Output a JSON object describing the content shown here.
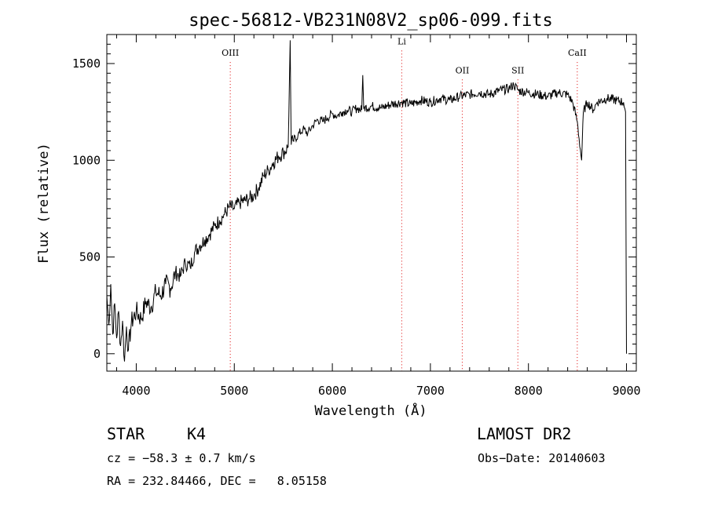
{
  "chart_data": {
    "type": "line",
    "title": "spec-56812-VB231N08V2_sp06-099.fits",
    "xlabel": "Wavelength (Å)",
    "ylabel": "Flux (relative)",
    "xlim": [
      3700,
      9100
    ],
    "ylim": [
      -90,
      1650
    ],
    "xticks": [
      4000,
      5000,
      6000,
      7000,
      8000,
      9000
    ],
    "yticks": [
      0,
      500,
      1000,
      1500
    ],
    "grid": false,
    "series": [
      {
        "color": "#000000",
        "points": [
          [
            3700,
            300
          ],
          [
            3720,
            150
          ],
          [
            3740,
            360
          ],
          [
            3760,
            100
          ],
          [
            3780,
            260
          ],
          [
            3800,
            80
          ],
          [
            3820,
            220
          ],
          [
            3840,
            40
          ],
          [
            3860,
            170
          ],
          [
            3880,
            -40
          ],
          [
            3900,
            140
          ],
          [
            3920,
            20
          ],
          [
            3950,
            160
          ],
          [
            4000,
            220
          ],
          [
            4050,
            180
          ],
          [
            4100,
            270
          ],
          [
            4150,
            240
          ],
          [
            4200,
            320
          ],
          [
            4250,
            300
          ],
          [
            4300,
            360
          ],
          [
            4350,
            340
          ],
          [
            4400,
            420
          ],
          [
            4450,
            400
          ],
          [
            4500,
            470
          ],
          [
            4550,
            450
          ],
          [
            4600,
            530
          ],
          [
            4650,
            560
          ],
          [
            4700,
            590
          ],
          [
            4750,
            620
          ],
          [
            4800,
            660
          ],
          [
            4850,
            690
          ],
          [
            4900,
            720
          ],
          [
            4950,
            760
          ],
          [
            5000,
            750
          ],
          [
            5050,
            780
          ],
          [
            5100,
            790
          ],
          [
            5150,
            800
          ],
          [
            5200,
            820
          ],
          [
            5250,
            860
          ],
          [
            5300,
            920
          ],
          [
            5350,
            950
          ],
          [
            5400,
            990
          ],
          [
            5450,
            1020
          ],
          [
            5500,
            1040
          ],
          [
            5550,
            1070
          ],
          [
            5570,
            1620
          ],
          [
            5580,
            1080
          ],
          [
            5600,
            1100
          ],
          [
            5650,
            1130
          ],
          [
            5700,
            1160
          ],
          [
            5750,
            1140
          ],
          [
            5800,
            1180
          ],
          [
            5850,
            1210
          ],
          [
            5900,
            1200
          ],
          [
            5950,
            1220
          ],
          [
            6000,
            1240
          ],
          [
            6050,
            1230
          ],
          [
            6100,
            1250
          ],
          [
            6150,
            1260
          ],
          [
            6200,
            1250
          ],
          [
            6250,
            1270
          ],
          [
            6300,
            1260
          ],
          [
            6310,
            1440
          ],
          [
            6320,
            1270
          ],
          [
            6400,
            1280
          ],
          [
            6500,
            1270
          ],
          [
            6600,
            1290
          ],
          [
            6700,
            1300
          ],
          [
            6800,
            1290
          ],
          [
            6900,
            1310
          ],
          [
            7000,
            1300
          ],
          [
            7100,
            1320
          ],
          [
            7200,
            1310
          ],
          [
            7300,
            1330
          ],
          [
            7400,
            1340
          ],
          [
            7500,
            1350
          ],
          [
            7600,
            1340
          ],
          [
            7700,
            1360
          ],
          [
            7800,
            1370
          ],
          [
            7850,
            1390
          ],
          [
            7900,
            1360
          ],
          [
            8000,
            1350
          ],
          [
            8100,
            1340
          ],
          [
            8200,
            1330
          ],
          [
            8300,
            1350
          ],
          [
            8400,
            1340
          ],
          [
            8450,
            1300
          ],
          [
            8498,
            1200
          ],
          [
            8542,
            1000
          ],
          [
            8560,
            1250
          ],
          [
            8600,
            1300
          ],
          [
            8662,
            1260
          ],
          [
            8700,
            1300
          ],
          [
            8800,
            1320
          ],
          [
            8900,
            1310
          ],
          [
            8970,
            1300
          ],
          [
            8990,
            1250
          ],
          [
            9000,
            0
          ]
        ]
      }
    ],
    "annotations": [
      {
        "label": "OIII",
        "x": 4959,
        "y": 1540,
        "line_color": "#dd0000"
      },
      {
        "label": "Li",
        "x": 6708,
        "y": 1600,
        "line_color": "#dd0000"
      },
      {
        "label": "OII",
        "x": 7325,
        "y": 1450,
        "line_color": "#dd0000"
      },
      {
        "label": "SII",
        "x": 7892,
        "y": 1450,
        "line_color": "#dd0000"
      },
      {
        "label": "CaII",
        "x": 8498,
        "y": 1540,
        "line_color": "#dd0000"
      }
    ]
  },
  "info": {
    "object_class": "STAR",
    "subclass": "K4",
    "survey": "LAMOST DR2",
    "cz": "cz = −58.3 ± 0.7 km/s",
    "obs_date": "Obs−Date: 20140603",
    "coords": "RA = 232.84466, DEC =   8.05158"
  }
}
